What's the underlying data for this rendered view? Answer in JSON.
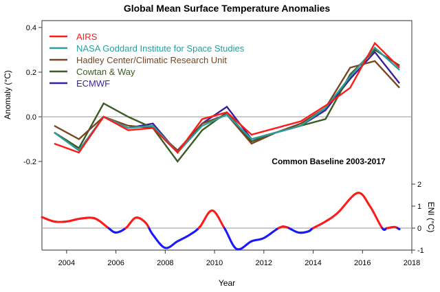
{
  "chart_data": [
    {
      "type": "line",
      "title": "Global Mean Surface Temperature Anomalies",
      "xlabel": "Year",
      "ylabel": "Anomaly (°C)",
      "ylim": [
        -0.2,
        0.4
      ],
      "yticks": [
        "0.4",
        "0.2",
        "0.0",
        "-0.2"
      ],
      "ytick_values": [
        0.4,
        0.2,
        0.0,
        -0.2
      ],
      "annotation": "Common Baseline 2003-2017",
      "legend_position": "top-left",
      "x": [
        2003.5,
        2004.5,
        2005.5,
        2006.5,
        2007.5,
        2008.5,
        2009.5,
        2010.5,
        2011.5,
        2012.5,
        2013.5,
        2014.5,
        2015.5,
        2016.5,
        2017.5
      ],
      "series": [
        {
          "name": "AIRS",
          "color": "#ff1a1a",
          "values": [
            -0.12,
            -0.16,
            0.0,
            -0.06,
            -0.05,
            -0.16,
            -0.01,
            0.02,
            -0.08,
            -0.05,
            -0.02,
            0.05,
            0.13,
            0.33,
            0.22
          ]
        },
        {
          "name": "NASA Goddard Institute for Space Studies",
          "color": "#2a9d9a",
          "values": [
            -0.07,
            -0.15,
            0.0,
            -0.05,
            -0.04,
            -0.16,
            -0.04,
            0.01,
            -0.1,
            -0.07,
            -0.04,
            0.04,
            0.18,
            0.31,
            0.21
          ]
        },
        {
          "name": "Hadley Center/Climatic Research Unit",
          "color": "#7a4420",
          "values": [
            -0.04,
            -0.1,
            0.0,
            -0.04,
            -0.05,
            -0.15,
            -0.03,
            0.01,
            -0.12,
            -0.07,
            -0.03,
            0.04,
            0.22,
            0.25,
            0.13
          ]
        },
        {
          "name": "Cowtan & Way",
          "color": "#3b5a24",
          "values": [
            -0.07,
            -0.14,
            0.06,
            0.0,
            -0.05,
            -0.2,
            -0.06,
            0.02,
            -0.11,
            -0.07,
            -0.04,
            -0.01,
            0.19,
            0.3,
            0.23
          ]
        },
        {
          "name": "ECMWF",
          "color": "#3a1e9a",
          "values": [
            -0.07,
            -0.15,
            0.0,
            -0.05,
            -0.03,
            -0.16,
            -0.03,
            0.045,
            -0.1,
            -0.07,
            -0.04,
            0.03,
            0.17,
            0.29,
            0.15
          ]
        }
      ]
    },
    {
      "type": "line",
      "xlabel": "Year",
      "ylabel": "ENI (°C)",
      "ylim": [
        -1,
        2
      ],
      "yticks": [
        "2",
        "1",
        "0",
        "-1"
      ],
      "ytick_values": [
        2,
        1,
        0,
        -1
      ],
      "xlim": [
        2003,
        2018
      ],
      "xticks": [
        "2004",
        "2006",
        "2008",
        "2010",
        "2012",
        "2014",
        "2016",
        "2018"
      ],
      "xtick_values": [
        2004,
        2006,
        2008,
        2010,
        2012,
        2014,
        2016,
        2018
      ],
      "positive_color": "#ff1a1a",
      "negative_color": "#1a1aff",
      "x": [
        2003.0,
        2003.5,
        2004.0,
        2004.5,
        2005.0,
        2005.3,
        2005.7,
        2006.0,
        2006.4,
        2006.8,
        2007.2,
        2007.5,
        2008.0,
        2008.5,
        2009.0,
        2009.4,
        2009.9,
        2010.4,
        2010.9,
        2011.5,
        2012.0,
        2012.6,
        2012.9,
        2013.4,
        2013.8,
        2014.0,
        2014.5,
        2015.0,
        2015.8,
        2016.3,
        2016.8,
        2017.0,
        2017.3,
        2017.5
      ],
      "values": [
        0.5,
        0.3,
        0.3,
        0.42,
        0.47,
        0.35,
        0.0,
        -0.2,
        0.0,
        0.47,
        0.25,
        -0.3,
        -0.9,
        -0.6,
        -0.3,
        0.05,
        0.8,
        0.0,
        -0.95,
        -0.6,
        -0.45,
        0.0,
        0.05,
        -0.2,
        -0.15,
        0.0,
        0.3,
        0.7,
        1.6,
        1.0,
        0.0,
        0.0,
        0.05,
        -0.05
      ]
    }
  ]
}
